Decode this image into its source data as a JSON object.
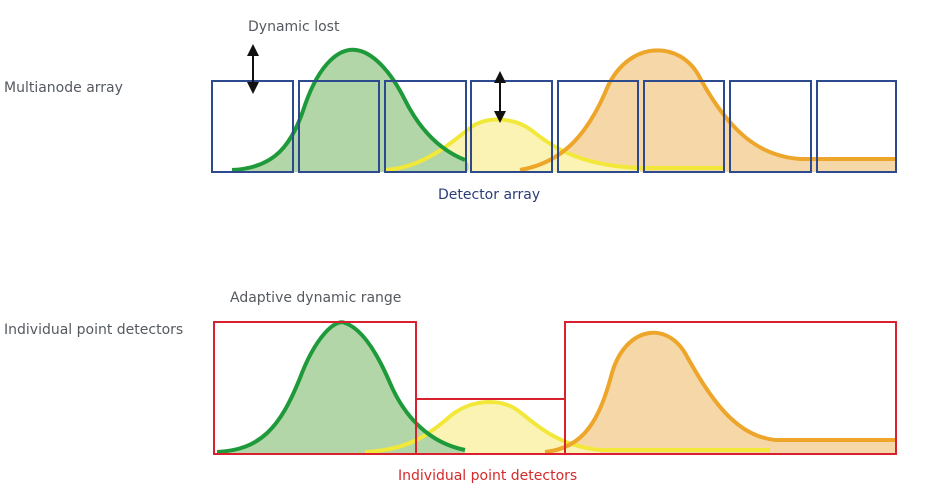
{
  "top": {
    "row_label": "Multianode array",
    "arrow_label": "Dynamic lost",
    "caption": "Detector array"
  },
  "bottom": {
    "annotation": "Adaptive dynamic range",
    "row_label": "Individual point detectors",
    "caption": "Individual point detectors"
  },
  "colors": {
    "green_line": "#1f9a3a",
    "green_fill": "#b3d6a8",
    "yellow_line": "#f2e83a",
    "yellow_fill": "#faf3b4",
    "orange_line": "#eda52a",
    "orange_fill": "#f6d8a8",
    "blue_box": "#2e4a8e",
    "red_box": "#d8202e"
  }
}
